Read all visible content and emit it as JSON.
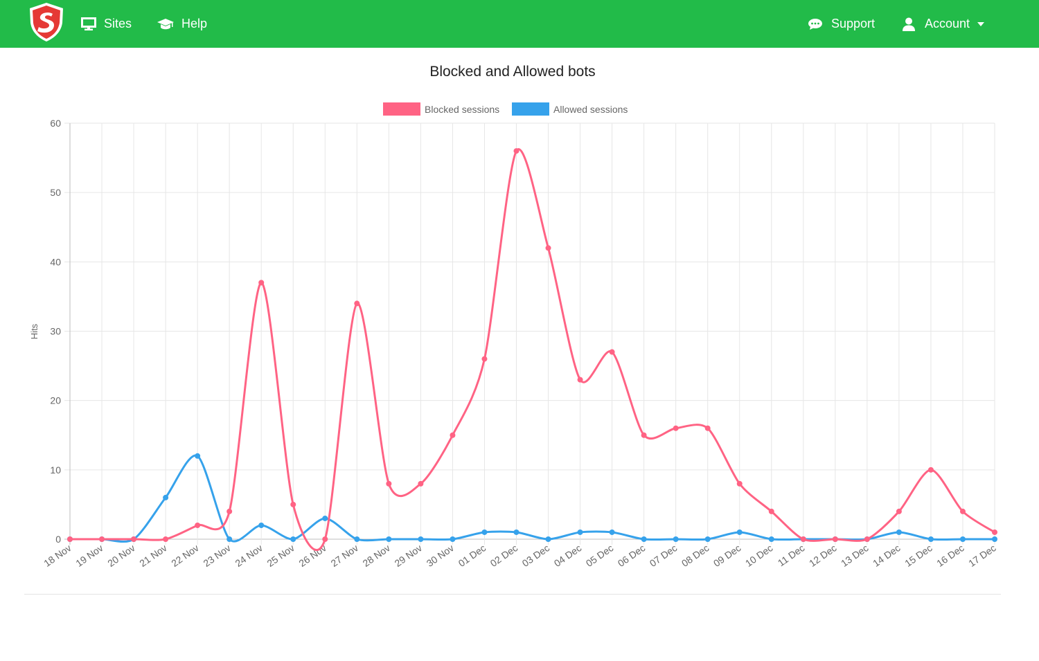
{
  "nav": {
    "sites_label": "Sites",
    "help_label": "Help",
    "support_label": "Support",
    "account_label": "Account",
    "icons": {
      "logo": "s-shield-logo",
      "sites": "monitor-icon",
      "help": "graduation-cap-icon",
      "support": "chat-bubble-icon",
      "account": "user-icon",
      "dropdown": "caret-down-icon"
    }
  },
  "colors": {
    "navbar": "#22bb49",
    "blocked": "#ff6384",
    "allowed": "#36a2eb"
  },
  "chart_data": {
    "type": "line",
    "title": "Blocked and Allowed bots",
    "xlabel": "",
    "ylabel": "Hits",
    "ylim": [
      0,
      60
    ],
    "yticks": [
      0,
      10,
      20,
      30,
      40,
      50,
      60
    ],
    "grid": true,
    "legend": "top",
    "categories": [
      "18 Nov",
      "19 Nov",
      "20 Nov",
      "21 Nov",
      "22 Nov",
      "23 Nov",
      "24 Nov",
      "25 Nov",
      "26 Nov",
      "27 Nov",
      "28 Nov",
      "29 Nov",
      "30 Nov",
      "01 Dec",
      "02 Dec",
      "03 Dec",
      "04 Dec",
      "05 Dec",
      "06 Dec",
      "07 Dec",
      "08 Dec",
      "09 Dec",
      "10 Dec",
      "11 Dec",
      "12 Dec",
      "13 Dec",
      "14 Dec",
      "15 Dec",
      "16 Dec",
      "17 Dec"
    ],
    "series": [
      {
        "name": "Blocked sessions",
        "color": "#ff6384",
        "values": [
          0,
          0,
          0,
          0,
          2,
          4,
          37,
          5,
          0,
          34,
          8,
          8,
          15,
          26,
          56,
          42,
          23,
          27,
          15,
          16,
          16,
          8,
          4,
          0,
          0,
          0,
          4,
          10,
          4,
          1
        ]
      },
      {
        "name": "Allowed sessions",
        "color": "#36a2eb",
        "values": [
          0,
          0,
          0,
          6,
          12,
          0,
          2,
          0,
          3,
          0,
          0,
          0,
          0,
          1,
          1,
          0,
          1,
          1,
          0,
          0,
          0,
          1,
          0,
          0,
          0,
          0,
          1,
          0,
          0,
          0
        ]
      }
    ]
  }
}
